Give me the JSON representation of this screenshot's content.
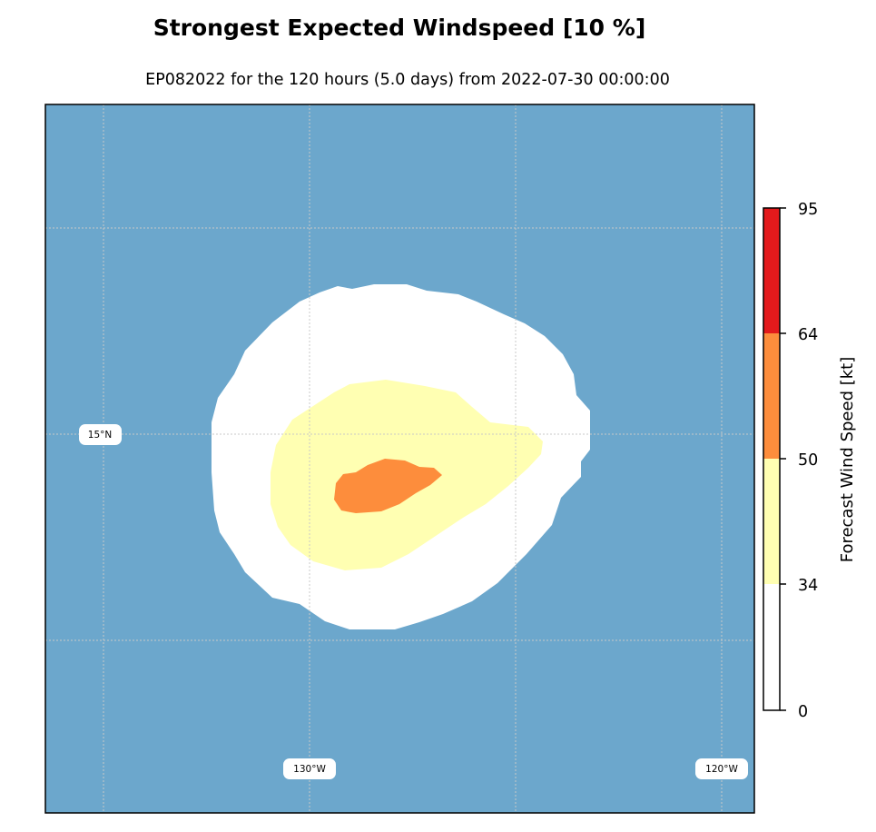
{
  "title": "Strongest Expected Windspeed [10 %]",
  "subtitle": "EP082022 for the 120 hours (5.0 days) from 2022-07-30 00:00:00",
  "map": {
    "ocean_color": "#6ca7cc",
    "gridline_color": "#c8c8c8",
    "gridlines": true,
    "latitude_labels": [
      "15°N"
    ],
    "longitude_labels": [
      "130°W",
      "120°W"
    ]
  },
  "colorbar": {
    "label": "Forecast Wind Speed [kt]",
    "ticks": [
      "0",
      "34",
      "50",
      "64",
      "95"
    ],
    "bands": [
      {
        "from": 0,
        "to": 34,
        "color": "#ffffff"
      },
      {
        "from": 34,
        "to": 50,
        "color": "#ffffb2"
      },
      {
        "from": 50,
        "to": 64,
        "color": "#fd8d3c"
      },
      {
        "from": 64,
        "to": 95,
        "color": "#e31a1c"
      }
    ]
  },
  "chart_data": {
    "type": "heatmap",
    "title": "Strongest Expected Windspeed [10 %]",
    "subtitle": "EP082022 for the 120 hours (5.0 days) from 2022-07-30 00:00:00",
    "colorbar_label": "Forecast Wind Speed [kt]",
    "levels_kt": [
      0,
      34,
      50,
      64,
      95
    ],
    "categories_present": [
      {
        "range_kt": [
          0,
          34
        ],
        "color": "#ffffff"
      },
      {
        "range_kt": [
          34,
          50
        ],
        "color": "#ffffb2"
      },
      {
        "range_kt": [
          50,
          64
        ],
        "color": "#fd8d3c"
      }
    ],
    "axis_labels": {
      "latitude": [
        "15°N"
      ],
      "longitude": [
        "130°W",
        "120°W"
      ]
    }
  }
}
